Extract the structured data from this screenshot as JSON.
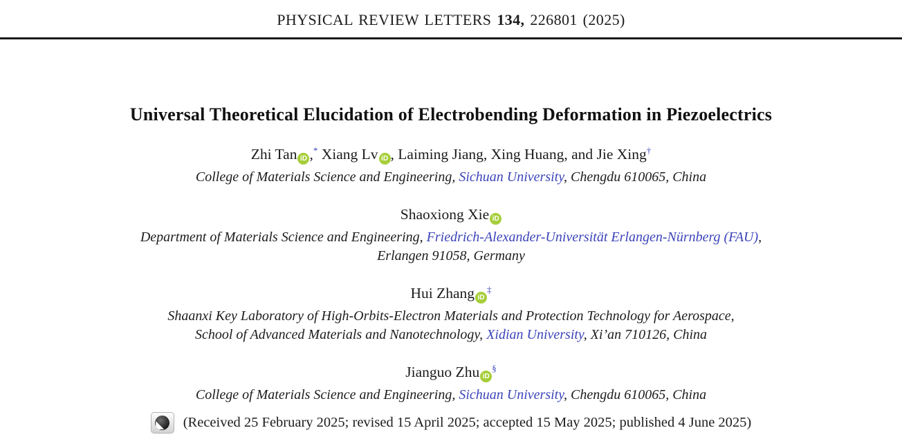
{
  "journal_header": {
    "name": "PHYSICAL REVIEW LETTERS",
    "volume": "134,",
    "issue_info": "226801 (2025)"
  },
  "paper": {
    "title": "Universal Theoretical Elucidation of Electrobending Deformation in Piezoelectrics"
  },
  "orcid_icon_label": "iD",
  "colors": {
    "link_blue": "#3b44b8",
    "orcid_green": "#a6ce39",
    "rule_black": "#1a1a1a"
  },
  "author_groups": [
    {
      "name_parts": [
        {
          "t": "text",
          "v": "Zhi Tan"
        },
        {
          "t": "orcid"
        },
        {
          "t": "text",
          "v": ","
        },
        {
          "t": "sup",
          "v": "*"
        },
        {
          "t": "text",
          "v": " Xiang Lv"
        },
        {
          "t": "orcid"
        },
        {
          "t": "text",
          "v": ", Laiming Jiang, Xing Huang, and Jie Xing"
        },
        {
          "t": "sup",
          "v": "†"
        }
      ],
      "affiliation_lines": [
        [
          {
            "text": "College of Materials Science and Engineering, ",
            "link": false
          },
          {
            "text": "Sichuan University",
            "link": true
          },
          {
            "text": ", Chengdu 610065, China",
            "link": false
          }
        ]
      ]
    },
    {
      "name_parts": [
        {
          "t": "text",
          "v": "Shaoxiong Xie"
        },
        {
          "t": "orcid"
        }
      ],
      "affiliation_lines": [
        [
          {
            "text": "Department of Materials Science and Engineering, ",
            "link": false
          },
          {
            "text": "Friedrich-Alexander-Universität Erlangen-Nürnberg (FAU)",
            "link": true
          },
          {
            "text": ",",
            "link": false
          }
        ],
        [
          {
            "text": "Erlangen 91058, Germany",
            "link": false
          }
        ]
      ]
    },
    {
      "name_parts": [
        {
          "t": "text",
          "v": "Hui Zhang"
        },
        {
          "t": "orcid"
        },
        {
          "t": "sup",
          "v": "‡"
        }
      ],
      "affiliation_lines": [
        [
          {
            "text": "Shaanxi Key Laboratory of High-Orbits-Electron Materials and Protection Technology for Aerospace,",
            "link": false
          }
        ],
        [
          {
            "text": "School of Advanced Materials and Nanotechnology, ",
            "link": false
          },
          {
            "text": "Xidian University",
            "link": true
          },
          {
            "text": ", Xi’an 710126, China",
            "link": false
          }
        ]
      ]
    },
    {
      "name_parts": [
        {
          "t": "text",
          "v": "Jianguo Zhu"
        },
        {
          "t": "orcid"
        },
        {
          "t": "sup",
          "v": "§"
        }
      ],
      "affiliation_lines": [
        [
          {
            "text": "College of Materials Science and Engineering, ",
            "link": false
          },
          {
            "text": "Sichuan University",
            "link": true
          },
          {
            "text": ", Chengdu 610065, China",
            "link": false
          }
        ]
      ]
    }
  ],
  "dates_line": {
    "icon": "crossmark-check-for-updates",
    "text": "(Received 25 February 2025; revised 15 April 2025; accepted 15 May 2025; published 4 June 2025)"
  }
}
